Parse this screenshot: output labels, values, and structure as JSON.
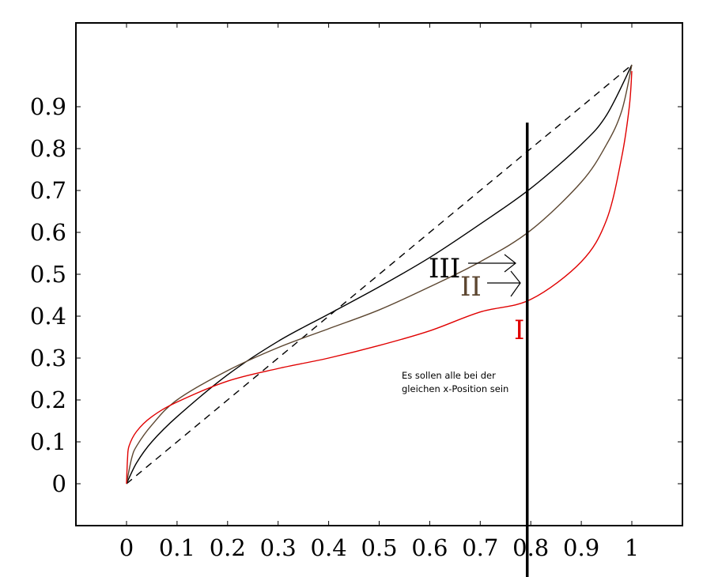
{
  "chart_data": {
    "type": "line",
    "title": "",
    "xlabel": "",
    "ylabel": "",
    "xlim": [
      -0.1,
      1.1
    ],
    "ylim": [
      -0.1,
      1.1
    ],
    "grid": false,
    "x_ticks": [
      0,
      0.1,
      0.2,
      0.3,
      0.4,
      0.5,
      0.6,
      0.7,
      0.8,
      0.9,
      1
    ],
    "x_tick_labels": [
      "0",
      "0.1",
      "0.2",
      "0.3",
      "0.4",
      "0.5",
      "0.6",
      "0.7",
      "0.8",
      "0.9",
      "1"
    ],
    "y_ticks": [
      0,
      0.1,
      0.2,
      0.3,
      0.4,
      0.5,
      0.6,
      0.7,
      0.8,
      0.9
    ],
    "y_tick_labels": [
      "0",
      "0.1",
      "0.2",
      "0.3",
      "0.4",
      "0.5",
      "0.6",
      "0.7",
      "0.8",
      "0.9"
    ],
    "series": [
      {
        "name": "",
        "style": "dashed",
        "color": "#000000",
        "x": [
          0,
          1
        ],
        "y": [
          0,
          1
        ]
      },
      {
        "name": "III",
        "style": "solid",
        "color": "#000000",
        "x": [
          0,
          0.02,
          0.05,
          0.1,
          0.2,
          0.3,
          0.4,
          0.5,
          0.6,
          0.7,
          0.8,
          0.9,
          0.95,
          1
        ],
        "y": [
          0,
          0.05,
          0.1,
          0.16,
          0.26,
          0.34,
          0.405,
          0.47,
          0.54,
          0.62,
          0.705,
          0.81,
          0.88,
          1
        ]
      },
      {
        "name": "II",
        "style": "solid",
        "color": "#5c4630",
        "x": [
          0,
          0.01,
          0.02,
          0.05,
          0.1,
          0.2,
          0.3,
          0.4,
          0.5,
          0.6,
          0.7,
          0.8,
          0.9,
          0.95,
          0.98,
          1
        ],
        "y": [
          0,
          0.06,
          0.09,
          0.14,
          0.2,
          0.27,
          0.325,
          0.37,
          0.415,
          0.47,
          0.53,
          0.605,
          0.72,
          0.81,
          0.89,
          1
        ]
      },
      {
        "name": "I",
        "style": "solid",
        "color": "#e00000",
        "x": [
          0,
          0.002,
          0.005,
          0.02,
          0.05,
          0.1,
          0.2,
          0.3,
          0.4,
          0.5,
          0.6,
          0.7,
          0.8,
          0.9,
          0.95,
          0.98,
          0.995,
          1
        ],
        "y": [
          0,
          0.06,
          0.09,
          0.125,
          0.16,
          0.195,
          0.245,
          0.275,
          0.3,
          0.33,
          0.365,
          0.41,
          0.44,
          0.53,
          0.63,
          0.78,
          0.9,
          0.985
        ]
      }
    ],
    "vertical_line": {
      "x": 0.793,
      "y_top": 0.862,
      "color": "#000000"
    },
    "annotations": [
      {
        "text": "III",
        "color": "#000000",
        "arrow": true
      },
      {
        "text": "II",
        "color": "#5c4630",
        "arrow": true
      },
      {
        "text": "I",
        "color": "#e00000",
        "arrow": false
      },
      {
        "text": "Es sollen alle bei der gleichen x-Position sein",
        "color": "#000000",
        "arrow": false
      }
    ]
  }
}
